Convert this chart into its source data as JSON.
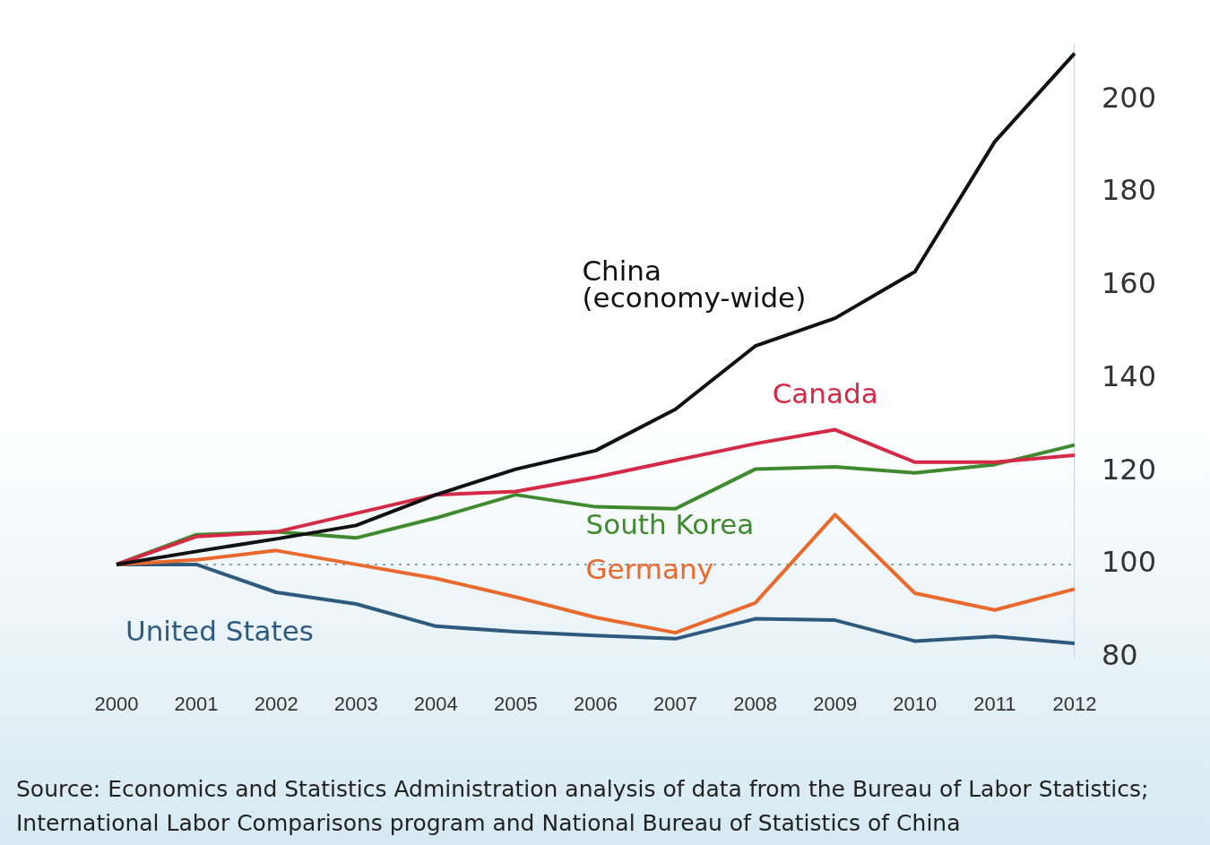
{
  "chart_data": {
    "type": "line",
    "categories": [
      "2000",
      "2001",
      "2002",
      "2003",
      "2004",
      "2005",
      "2006",
      "2007",
      "2008",
      "2009",
      "2010",
      "2011",
      "2012"
    ],
    "series": [
      {
        "name": "China (economy-wide)",
        "color": "#111111",
        "values": [
          100,
          102.8,
          105.5,
          108.4,
          115,
          120.5,
          124.5,
          133.4,
          147,
          153,
          163,
          191,
          210
        ]
      },
      {
        "name": "Canada",
        "color": "#d42a45",
        "values": [
          100,
          106,
          107,
          111,
          115,
          115.7,
          118.8,
          122.4,
          126,
          129,
          122,
          122,
          123.5
        ]
      },
      {
        "name": "South Korea",
        "color": "#3f8a2e",
        "values": [
          100,
          106.4,
          107,
          105.7,
          110,
          115,
          112.4,
          112,
          120.5,
          121,
          119.7,
          121.5,
          125.7
        ]
      },
      {
        "name": "Germany",
        "color": "#ea6a2e",
        "values": [
          100,
          101,
          103,
          100,
          97,
          93,
          88.6,
          85.3,
          91.7,
          110.7,
          93.8,
          90.2,
          94.7
        ]
      },
      {
        "name": "United States",
        "color": "#2e5a7e",
        "values": [
          100,
          100,
          94,
          91.5,
          86.7,
          85.5,
          84.7,
          84,
          88.3,
          88,
          83.5,
          84.5,
          83
        ]
      }
    ],
    "ylim": [
      80,
      212
    ],
    "yticks": [
      80,
      100,
      120,
      140,
      160,
      180,
      200
    ],
    "ref_lines": [
      {
        "axis": "y",
        "value": 100,
        "color": "#8aa4b0",
        "line_style": "dotted"
      }
    ],
    "grid": false,
    "legend": false,
    "marker": "none",
    "line_style": "solid",
    "annotations": [
      "Source: Economics and Statistics Administration analysis of data from the Bureau of Labor Statistics; International Labor Comparisons program and National Bureau of Statistics of China"
    ]
  }
}
